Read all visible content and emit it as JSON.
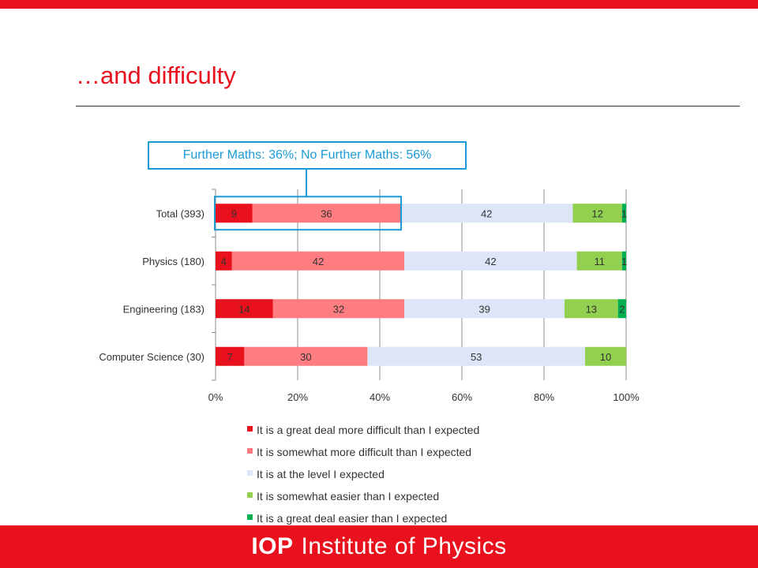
{
  "slide": {
    "title": "…and difficulty",
    "callout": "Further Maths: 36%; No Further Maths: 56%",
    "footer_logo_mark": "IOP",
    "footer_logo_text": "Institute of Physics"
  },
  "colors": {
    "brand": "#e8111d",
    "callout": "#1a9bd7",
    "series": [
      "#e8111d",
      "#ff7c80",
      "#dce6f8",
      "#92d050",
      "#00b050"
    ]
  },
  "chart_data": {
    "type": "bar",
    "orientation": "horizontal",
    "stacked": "percent",
    "categories": [
      "Total (393)",
      "Physics (180)",
      "Engineering (183)",
      "Computer Science (30)"
    ],
    "series": [
      {
        "name": "It is a great deal more difficult than I expected",
        "values": [
          9,
          4,
          14,
          7
        ]
      },
      {
        "name": "It is somewhat more difficult than I expected",
        "values": [
          36,
          42,
          32,
          30
        ]
      },
      {
        "name": "It is at the level I expected",
        "values": [
          42,
          42,
          39,
          53
        ]
      },
      {
        "name": "It is somewhat easier than I expected",
        "values": [
          12,
          11,
          13,
          10
        ]
      },
      {
        "name": "It is a great deal easier than I expected",
        "values": [
          1,
          1,
          2,
          0
        ]
      }
    ],
    "xticks": [
      "0%",
      "20%",
      "40%",
      "60%",
      "80%",
      "100%"
    ],
    "xlim": [
      0,
      100
    ],
    "grid": true,
    "legend": "bottom",
    "highlight": {
      "category": "Total (393)",
      "series_count": 2
    }
  }
}
